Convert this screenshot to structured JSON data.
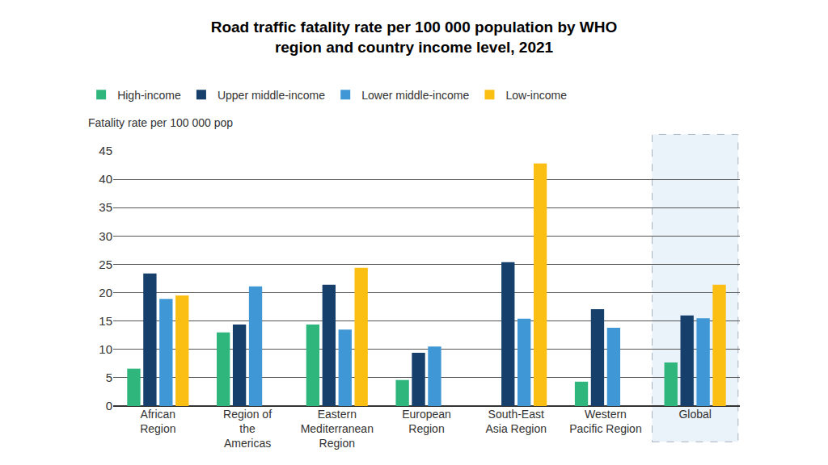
{
  "chart_data": {
    "type": "bar",
    "title": "Road traffic fatality rate per 100 000 population by WHO\nregion and country income level, 2021",
    "y_label": "Fatality rate per 100 000 pop",
    "categories": [
      "African\nRegion",
      "Region of\nthe\nAmericas",
      "Eastern\nMediterranean\nRegion",
      "European\nRegion",
      "South-East\nAsia Region",
      "Western\nPacific Region",
      "Global"
    ],
    "series": [
      {
        "name": "High-income",
        "color": "#2fb67c",
        "values": [
          6.6,
          13.0,
          14.4,
          4.6,
          null,
          4.3,
          7.7
        ]
      },
      {
        "name": "Upper middle-income",
        "color": "#173f6b",
        "values": [
          23.4,
          14.4,
          21.4,
          9.4,
          25.4,
          17.1,
          16.0
        ]
      },
      {
        "name": "Lower middle-income",
        "color": "#3f97d6",
        "values": [
          18.9,
          21.1,
          13.5,
          10.5,
          15.4,
          13.8,
          15.5
        ]
      },
      {
        "name": "Low-income",
        "color": "#fbbf14",
        "values": [
          19.5,
          null,
          24.4,
          null,
          42.8,
          null,
          21.4
        ]
      }
    ],
    "ylim": [
      0,
      45
    ],
    "yticks": [
      0,
      5,
      10,
      15,
      20,
      25,
      30,
      35,
      40,
      45
    ],
    "grid": true,
    "legend": "top"
  }
}
